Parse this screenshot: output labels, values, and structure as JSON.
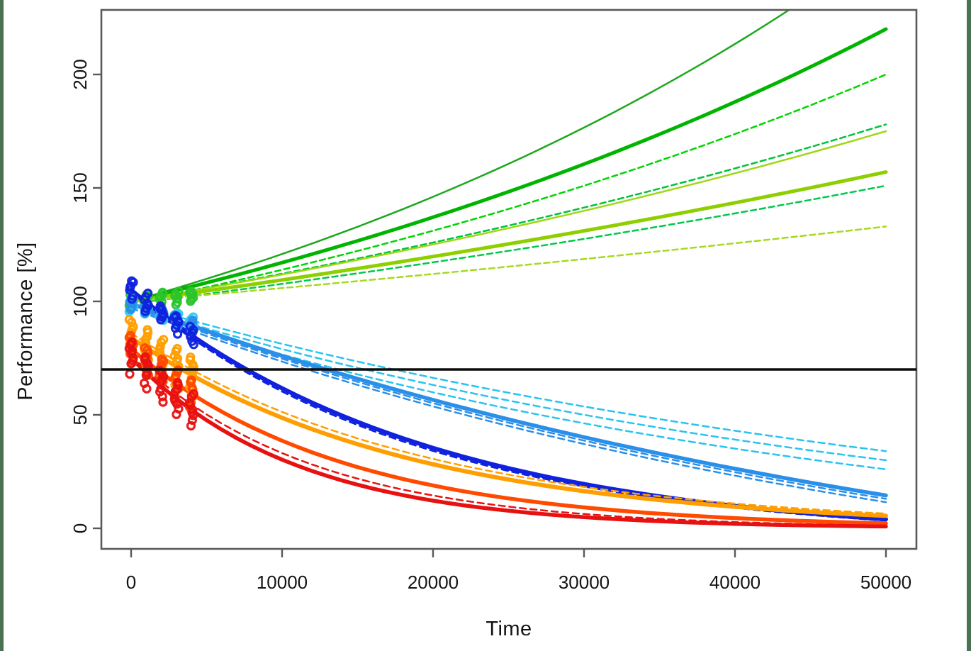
{
  "slide": {
    "background": "#ffffff",
    "edge_color": "#4a7150"
  },
  "chart_data": {
    "type": "line",
    "title": "",
    "xlabel": "Time",
    "ylabel": "Performance [%]",
    "xlim": [
      -2000,
      52000
    ],
    "ylim": [
      -9.5,
      228
    ],
    "x_ticks": [
      0,
      10000,
      20000,
      30000,
      40000,
      50000
    ],
    "y_ticks": [
      0,
      50,
      100,
      150,
      200
    ],
    "grid": false,
    "legend": null,
    "axis_color": "#595959",
    "tick_text_color": "#141414",
    "reference_line": {
      "y": 70,
      "color": "#0d0d0d"
    },
    "series_note": "value(t) = (start-offset)*exp(ln((end-offset)/(start-offset))/50000*t)+offset, t in 0..50000",
    "series": [
      {
        "name": "green-steep",
        "color": "#1ca81c",
        "width": 2.5,
        "dash": null,
        "start": 100,
        "end": 258,
        "offset": 0
      },
      {
        "name": "green-thick",
        "color": "#00b400",
        "width": 5,
        "dash": null,
        "start": 100,
        "end": 220,
        "offset": 0
      },
      {
        "name": "green-bright",
        "color": "#00d500",
        "width": 2.5,
        "dash": "8,5",
        "start": 99,
        "end": 200,
        "offset": 0
      },
      {
        "name": "green-mid",
        "color": "#00c33a",
        "width": 2.5,
        "dash": "8,5",
        "start": 100,
        "end": 178,
        "offset": 0
      },
      {
        "name": "yellowgreen-mid",
        "color": "#9fd813",
        "width": 2.5,
        "dash": null,
        "start": 100,
        "end": 175,
        "offset": 0
      },
      {
        "name": "yellowgreen-thick",
        "color": "#8ecf00",
        "width": 5,
        "dash": null,
        "start": 100,
        "end": 157,
        "offset": 0
      },
      {
        "name": "green-low",
        "color": "#00c94a",
        "width": 2.5,
        "dash": "8,5",
        "start": 99,
        "end": 151,
        "offset": 0
      },
      {
        "name": "yellowgreen-low",
        "color": "#a6da1e",
        "width": 2.5,
        "dash": "8,5",
        "start": 100,
        "end": 133,
        "offset": 0
      },
      {
        "name": "cyan-1",
        "color": "#29c3f0",
        "width": 2.5,
        "dash": "9,6",
        "start": 99,
        "end": 34,
        "offset": -15
      },
      {
        "name": "cyan-2",
        "color": "#29c3f0",
        "width": 2.5,
        "dash": "9,6",
        "start": 98,
        "end": 30,
        "offset": -15
      },
      {
        "name": "cyan-3",
        "color": "#29c3f0",
        "width": 2.5,
        "dash": "9,6",
        "start": 97,
        "end": 26,
        "offset": -15
      },
      {
        "name": "dodgerblue-thick",
        "color": "#2a8fe8",
        "width": 5.5,
        "dash": null,
        "start": 99,
        "end": 14.5,
        "offset": -50
      },
      {
        "name": "dodgerblue-2",
        "color": "#2a8fe8",
        "width": 2.5,
        "dash": "9,6",
        "start": 98,
        "end": 13,
        "offset": -50
      },
      {
        "name": "dodgerblue-3",
        "color": "#2a8fe8",
        "width": 2.5,
        "dash": "9,6",
        "start": 97,
        "end": 11.5,
        "offset": -50
      },
      {
        "name": "royalblue-thick",
        "color": "#1022dd",
        "width": 6,
        "dash": null,
        "start": 105,
        "end": 4,
        "offset": -5
      },
      {
        "name": "royalblue-2",
        "color": "#1022dd",
        "width": 2.5,
        "dash": "9,6",
        "start": 104,
        "end": 3.4,
        "offset": -5
      },
      {
        "name": "orange-thick",
        "color": "#ff9e00",
        "width": 6,
        "dash": null,
        "start": 84,
        "end": 5.5,
        "offset": 0
      },
      {
        "name": "orange-2",
        "color": "#ff9e00",
        "width": 2.5,
        "dash": "9,6",
        "start": 86,
        "end": 6.5,
        "offset": 0
      },
      {
        "name": "orangered-thick",
        "color": "#ff4a00",
        "width": 5.5,
        "dash": null,
        "start": 79,
        "end": 2.2,
        "offset": 0
      },
      {
        "name": "red-thick",
        "color": "#e81111",
        "width": 5.5,
        "dash": null,
        "start": 75,
        "end": 0.8,
        "offset": 0
      },
      {
        "name": "red-2",
        "color": "#e81111",
        "width": 2.5,
        "dash": "9,6",
        "start": 76,
        "end": 1.2,
        "offset": 0
      }
    ],
    "scatter": [
      {
        "name": "green-points",
        "color": "#2bc42b",
        "times": [
          0,
          1000,
          2000,
          3000,
          4000
        ],
        "centers": [
          100,
          100.5,
          101,
          101.5,
          102
        ],
        "spread": 3,
        "count": 7
      },
      {
        "name": "cyan-points",
        "color": "#35c8f0",
        "times": [
          0,
          1000,
          2000,
          3000,
          4000
        ],
        "centers": [
          98,
          96.1,
          94.2,
          92.4,
          90.6
        ],
        "spread": 2.5,
        "count": 6
      },
      {
        "name": "dodger-points",
        "color": "#2a8fe8",
        "times": [
          0,
          1000,
          2000,
          3000,
          4000
        ],
        "centers": [
          99,
          96.5,
          94,
          91.5,
          89.2
        ],
        "spread": 2.5,
        "count": 6
      },
      {
        "name": "royal-points",
        "color": "#1022dd",
        "times": [
          0,
          1000,
          2000,
          3000,
          4000
        ],
        "centers": [
          105,
          99.6,
          94.5,
          89.6,
          85
        ],
        "spread": 4,
        "count": 7
      },
      {
        "name": "orange-points",
        "color": "#ff9e00",
        "times": [
          0,
          1000,
          2000,
          3000,
          4000
        ],
        "centers": [
          84,
          79.5,
          75.2,
          71.2,
          67.4
        ],
        "spread": 8,
        "count": 10
      },
      {
        "name": "orangered-points",
        "color": "#ff4a00",
        "times": [
          0,
          1000,
          2000,
          3000,
          4000
        ],
        "centers": [
          79,
          73.5,
          68.5,
          63.7,
          59.3
        ],
        "spread": 6,
        "count": 8
      },
      {
        "name": "red-points",
        "color": "#e81111",
        "times": [
          0,
          1000,
          2000,
          3000,
          4000
        ],
        "centers": [
          75,
          68.5,
          62.6,
          57.2,
          52.2
        ],
        "spread": 7,
        "count": 9
      }
    ]
  }
}
